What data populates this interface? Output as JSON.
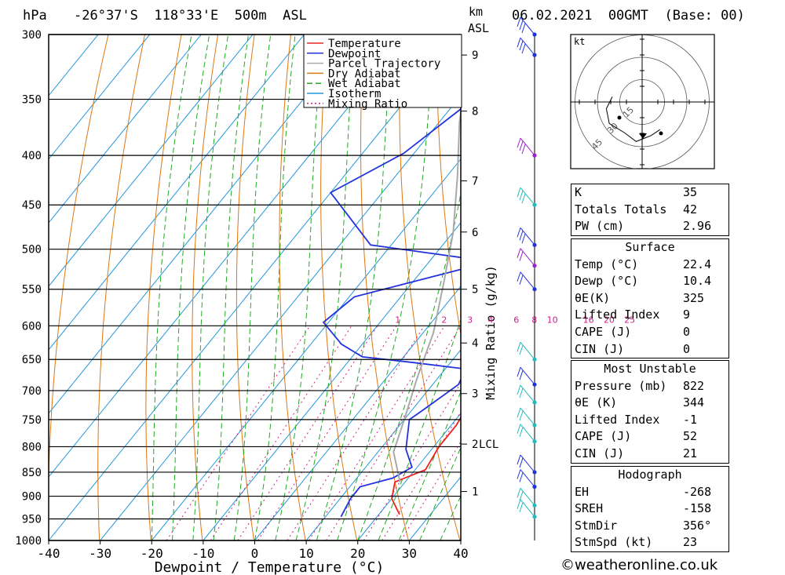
{
  "header": {
    "unit_left": "hPa",
    "location": "-26°37'S  118°33'E  500m  ASL",
    "unit_right_km": "km",
    "unit_right_asl": "ASL",
    "datetime": "06.02.2021  00GMT  (Base: 00)"
  },
  "chart_data": {
    "type": "line",
    "title": "",
    "xlabel": "Dewpoint / Temperature (°C)",
    "ylabel": "",
    "right_axis_label": "Mixing Ratio (g/kg)",
    "x_ticks": [
      "-40",
      "-30",
      "-20",
      "-10",
      "0",
      "10",
      "20",
      "30",
      "40"
    ],
    "pressure_levels": [
      300,
      350,
      400,
      450,
      500,
      550,
      600,
      650,
      700,
      750,
      800,
      850,
      900,
      950,
      1000
    ],
    "pressure_labels": [
      "300",
      "350",
      "400",
      "450",
      "500",
      "550",
      "600",
      "650",
      "700",
      "750",
      "800",
      "850",
      "900",
      "950",
      "1000"
    ],
    "km_ticks": [
      {
        "label": "9",
        "p": 315
      },
      {
        "label": "8",
        "p": 360
      },
      {
        "label": "7",
        "p": 425
      },
      {
        "label": "6",
        "p": 480
      },
      {
        "label": "5",
        "p": 550
      },
      {
        "label": "4",
        "p": 625
      },
      {
        "label": "3",
        "p": 705
      },
      {
        "label": "2",
        "p": 795
      },
      {
        "label": "1",
        "p": 890
      }
    ],
    "lcl_label": "LCL",
    "lcl_p": 795,
    "mixing_ratio_labels": [
      "1",
      "2",
      "3",
      "4",
      "6",
      "8",
      "10",
      "16",
      "20",
      "25"
    ],
    "mixing_ratio_label_x": [
      -6,
      3,
      8,
      12,
      17,
      20.5,
      24,
      31,
      35,
      39
    ],
    "legend": [
      "Temperature",
      "Dewpoint",
      "Parcel Trajectory",
      "Dry Adiabat",
      "Wet Adiabat",
      "Isotherm",
      "Mixing Ratio"
    ],
    "series": [
      {
        "name": "Temperature",
        "color": "#ee2222",
        "points": [
          [
            24,
            940
          ],
          [
            20,
            905
          ],
          [
            18,
            870
          ],
          [
            22,
            845
          ],
          [
            21,
            800
          ],
          [
            21,
            760
          ],
          [
            20,
            720
          ],
          [
            18,
            690
          ],
          [
            16,
            660
          ],
          [
            17,
            635
          ],
          [
            16,
            600
          ],
          [
            15,
            575
          ],
          [
            12,
            540
          ],
          [
            9,
            510
          ],
          [
            9,
            495
          ],
          [
            9,
            450
          ],
          [
            9,
            420
          ],
          [
            7,
            395
          ],
          [
            5,
            360
          ]
        ]
      },
      {
        "name": "Dewpoint",
        "color": "#2233dd",
        "points": [
          [
            13,
            945
          ],
          [
            12,
            905
          ],
          [
            12,
            880
          ],
          [
            17,
            862
          ],
          [
            19,
            840
          ],
          [
            15,
            805
          ],
          [
            11,
            750
          ],
          [
            12,
            735
          ],
          [
            13,
            720
          ],
          [
            15,
            690
          ],
          [
            14,
            665
          ],
          [
            3,
            655
          ],
          [
            -8,
            646
          ],
          [
            -14,
            627
          ],
          [
            -21,
            595
          ],
          [
            -19,
            560
          ],
          [
            2,
            515
          ],
          [
            -24,
            495
          ],
          [
            -40,
            437
          ],
          [
            -32,
            398
          ],
          [
            -27,
            350
          ],
          [
            -17,
            300
          ]
        ]
      },
      {
        "name": "Parcel Trajectory",
        "color": "#aaaaaa",
        "points": [
          [
            19,
            870
          ],
          [
            13,
            810
          ],
          [
            10,
            750
          ],
          [
            6,
            680
          ],
          [
            2,
            610
          ],
          [
            -4,
            540
          ],
          [
            -10,
            480
          ],
          [
            -18,
            420
          ],
          [
            -26,
            370
          ],
          [
            -34,
            320
          ],
          [
            -38,
            300
          ]
        ]
      }
    ],
    "wind_speeds_kt": [
      25,
      25,
      30,
      25,
      25,
      20,
      15,
      20,
      15,
      15,
      15,
      15,
      15,
      15,
      15,
      15
    ],
    "hodograph": {
      "unit": "kt",
      "ring_labels": [
        "15",
        "30",
        "45"
      ],
      "points": [
        [
          -10,
          7
        ],
        [
          -12,
          3
        ],
        [
          -11,
          -2
        ],
        [
          -6,
          -5
        ],
        [
          -2,
          -8
        ],
        [
          3,
          -6
        ],
        [
          6,
          -4
        ]
      ]
    }
  },
  "indices": {
    "rows": [
      {
        "label": "K",
        "value": "35"
      },
      {
        "label": "Totals Totals",
        "value": "42"
      },
      {
        "label": "PW (cm)",
        "value": "2.96"
      }
    ]
  },
  "surface": {
    "header": "Surface",
    "rows": [
      {
        "label": "Temp (°C)",
        "value": "22.4"
      },
      {
        "label": "Dewp (°C)",
        "value": "10.4"
      },
      {
        "label": "θE(K)",
        "value": "325"
      },
      {
        "label": "Lifted Index",
        "value": "9"
      },
      {
        "label": "CAPE (J)",
        "value": "0"
      },
      {
        "label": "CIN (J)",
        "value": "0"
      }
    ]
  },
  "most_unstable": {
    "header": "Most Unstable",
    "rows": [
      {
        "label": "Pressure (mb)",
        "value": "822"
      },
      {
        "label": "θE (K)",
        "value": "344"
      },
      {
        "label": "Lifted Index",
        "value": "-1"
      },
      {
        "label": "CAPE (J)",
        "value": "52"
      },
      {
        "label": "CIN (J)",
        "value": "21"
      }
    ]
  },
  "hodograph_stats": {
    "header": "Hodograph",
    "rows": [
      {
        "label": "EH",
        "value": "-268"
      },
      {
        "label": "SREH",
        "value": "-158"
      },
      {
        "label": "StmDir",
        "value": "356°"
      },
      {
        "label": "StmSpd (kt)",
        "value": "23"
      }
    ]
  },
  "credit": "©weatheronline.co.uk",
  "colors": {
    "temperature": "#ee2222",
    "dewpoint": "#2233dd",
    "parcel": "#aaaaaa",
    "dry_adiabat": "#dd7711",
    "wet_adiabat": "#22aa22",
    "isotherm": "#2299dd",
    "mixing_ratio": "#cc2288"
  }
}
